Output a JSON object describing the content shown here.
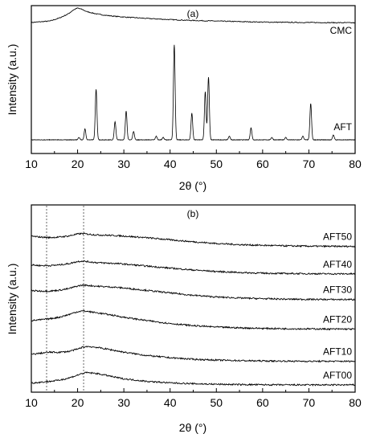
{
  "chart_data": [
    {
      "type": "line",
      "panel_label": "(a)",
      "xlabel": "2θ (°)",
      "ylabel": "Intensity (a.u.)",
      "xlim": [
        10,
        80
      ],
      "xticks": [
        10,
        20,
        30,
        40,
        50,
        60,
        70,
        80
      ],
      "y_ticks_shown": false,
      "grid": false,
      "legend": "none; series labeled at right end of each curve",
      "series": [
        {
          "name": "CMC",
          "x": [
            10,
            12,
            14,
            16,
            18,
            19,
            20,
            21,
            22,
            24,
            26,
            28,
            30,
            35,
            40,
            45,
            50,
            55,
            60,
            65,
            70,
            75,
            80
          ],
          "y": [
            0.8,
            0.805,
            0.81,
            0.83,
            0.86,
            0.885,
            0.9,
            0.89,
            0.875,
            0.86,
            0.85,
            0.843,
            0.838,
            0.828,
            0.82,
            0.814,
            0.81,
            0.806,
            0.803,
            0.801,
            0.8,
            0.799,
            0.798
          ]
        },
        {
          "name": "AFT",
          "baseline": 0.0,
          "peaks": [
            {
              "x": 20.3,
              "h": 0.02
            },
            {
              "x": 21.6,
              "h": 0.09
            },
            {
              "x": 24.0,
              "h": 0.42
            },
            {
              "x": 28.1,
              "h": 0.15
            },
            {
              "x": 30.5,
              "h": 0.24
            },
            {
              "x": 32.1,
              "h": 0.07
            },
            {
              "x": 37.0,
              "h": 0.03
            },
            {
              "x": 38.5,
              "h": 0.02
            },
            {
              "x": 40.9,
              "h": 0.79
            },
            {
              "x": 44.7,
              "h": 0.22
            },
            {
              "x": 47.6,
              "h": 0.4
            },
            {
              "x": 48.3,
              "h": 0.52
            },
            {
              "x": 52.8,
              "h": 0.03
            },
            {
              "x": 57.5,
              "h": 0.1
            },
            {
              "x": 62.0,
              "h": 0.02
            },
            {
              "x": 65.0,
              "h": 0.02
            },
            {
              "x": 68.7,
              "h": 0.03
            },
            {
              "x": 70.4,
              "h": 0.3
            },
            {
              "x": 75.3,
              "h": 0.04
            }
          ]
        }
      ]
    },
    {
      "type": "line",
      "panel_label": "(b)",
      "xlabel": "2θ (°)",
      "ylabel": "Intensity (a.u.)",
      "xlim": [
        10,
        80
      ],
      "xticks": [
        10,
        20,
        30,
        40,
        50,
        60,
        70,
        80
      ],
      "y_ticks_shown": false,
      "grid": false,
      "reference_lines_x": [
        13.3,
        21.3
      ],
      "legend": "none; series labeled at right end of each curve",
      "x": [
        10,
        12,
        14,
        16,
        18,
        20,
        21,
        22,
        24,
        26,
        28,
        30,
        35,
        40,
        45,
        50,
        55,
        60,
        65,
        70,
        75,
        80
      ],
      "series": [
        {
          "name": "AFT50",
          "y": [
            0.905,
            0.9,
            0.897,
            0.9,
            0.906,
            0.918,
            0.921,
            0.918,
            0.913,
            0.911,
            0.909,
            0.906,
            0.896,
            0.884,
            0.872,
            0.862,
            0.855,
            0.851,
            0.848,
            0.846,
            0.845,
            0.845
          ]
        },
        {
          "name": "AFT40",
          "y": [
            0.735,
            0.731,
            0.731,
            0.735,
            0.742,
            0.755,
            0.758,
            0.755,
            0.749,
            0.746,
            0.744,
            0.74,
            0.728,
            0.716,
            0.705,
            0.696,
            0.69,
            0.686,
            0.684,
            0.683,
            0.682,
            0.682
          ]
        },
        {
          "name": "AFT30",
          "y": [
            0.583,
            0.58,
            0.58,
            0.585,
            0.594,
            0.61,
            0.615,
            0.614,
            0.609,
            0.606,
            0.603,
            0.598,
            0.584,
            0.569,
            0.555,
            0.545,
            0.539,
            0.535,
            0.532,
            0.531,
            0.53,
            0.53
          ]
        },
        {
          "name": "AFT20",
          "y": [
            0.405,
            0.41,
            0.416,
            0.425,
            0.44,
            0.458,
            0.462,
            0.46,
            0.452,
            0.444,
            0.435,
            0.425,
            0.405,
            0.388,
            0.375,
            0.367,
            0.362,
            0.359,
            0.357,
            0.356,
            0.355,
            0.355
          ]
        },
        {
          "name": "AFT10",
          "y": [
            0.205,
            0.212,
            0.218,
            0.217,
            0.222,
            0.236,
            0.247,
            0.252,
            0.247,
            0.238,
            0.228,
            0.218,
            0.198,
            0.185,
            0.176,
            0.171,
            0.168,
            0.166,
            0.165,
            0.164,
            0.164,
            0.164
          ]
        },
        {
          "name": "AFT00",
          "y": [
            0.035,
            0.04,
            0.045,
            0.052,
            0.064,
            0.082,
            0.092,
            0.097,
            0.092,
            0.082,
            0.07,
            0.06,
            0.045,
            0.036,
            0.031,
            0.028,
            0.026,
            0.025,
            0.024,
            0.024,
            0.024,
            0.024
          ]
        }
      ]
    }
  ]
}
